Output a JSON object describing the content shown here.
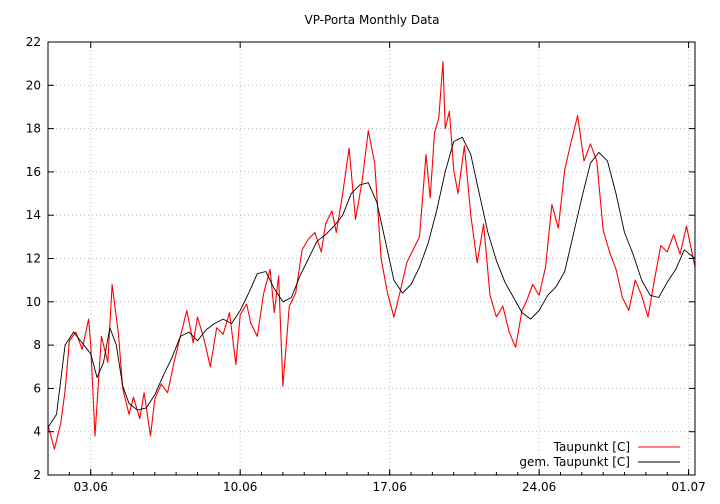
{
  "chart_data": {
    "type": "line",
    "title": "VP-Porta Monthly Data",
    "xlabel": "",
    "ylabel": "",
    "xlim": [
      0,
      30.3
    ],
    "ylim": [
      2,
      22
    ],
    "yticks": [
      2,
      4,
      6,
      8,
      10,
      12,
      14,
      16,
      18,
      20,
      22
    ],
    "xticks": [
      {
        "day": 2.0,
        "label": "03.06"
      },
      {
        "day": 9.0,
        "label": "10.06"
      },
      {
        "day": 16.0,
        "label": "17.06"
      },
      {
        "day": 23.0,
        "label": "24.06"
      },
      {
        "day": 30.0,
        "label": "01.07"
      }
    ],
    "grid": true,
    "legend_position": "bottom-right",
    "series": [
      {
        "name": "Taupunkt [C]",
        "color": "#ff0000",
        "x": [
          0.0,
          0.3,
          0.6,
          0.8,
          1.0,
          1.3,
          1.6,
          1.9,
          2.0,
          2.2,
          2.5,
          2.8,
          3.0,
          3.3,
          3.5,
          3.8,
          4.0,
          4.3,
          4.5,
          4.8,
          5.0,
          5.3,
          5.6,
          5.9,
          6.2,
          6.5,
          6.8,
          7.0,
          7.3,
          7.6,
          7.9,
          8.2,
          8.5,
          8.8,
          9.0,
          9.3,
          9.5,
          9.8,
          10.1,
          10.4,
          10.6,
          10.8,
          11.0,
          11.3,
          11.6,
          11.9,
          12.2,
          12.5,
          12.8,
          13.0,
          13.3,
          13.5,
          13.8,
          14.1,
          14.4,
          14.7,
          15.0,
          15.3,
          15.6,
          15.9,
          16.2,
          16.5,
          16.8,
          17.1,
          17.4,
          17.7,
          17.9,
          18.1,
          18.3,
          18.5,
          18.6,
          18.8,
          19.0,
          19.2,
          19.5,
          19.8,
          20.1,
          20.4,
          20.7,
          21.0,
          21.3,
          21.6,
          21.9,
          22.2,
          22.4,
          22.7,
          23.0,
          23.3,
          23.6,
          23.9,
          24.2,
          24.5,
          24.8,
          25.1,
          25.4,
          25.7,
          26.0,
          26.3,
          26.6,
          26.9,
          27.2,
          27.5,
          27.8,
          28.1,
          28.4,
          28.7,
          29.0,
          29.3,
          29.6,
          29.9,
          30.3
        ],
        "values": [
          4.3,
          3.2,
          4.4,
          5.9,
          8.2,
          8.6,
          7.8,
          9.2,
          8.0,
          3.8,
          8.4,
          7.2,
          10.8,
          8.5,
          6.0,
          4.8,
          5.6,
          4.6,
          5.8,
          3.8,
          5.5,
          6.2,
          5.8,
          7.2,
          8.4,
          9.6,
          8.1,
          9.3,
          8.3,
          7.0,
          8.8,
          8.5,
          9.5,
          7.1,
          9.4,
          9.9,
          9.0,
          8.4,
          10.4,
          11.5,
          9.5,
          11.2,
          6.1,
          9.8,
          10.4,
          12.4,
          12.9,
          13.2,
          12.3,
          13.6,
          14.2,
          13.2,
          15.0,
          17.1,
          13.8,
          15.5,
          17.9,
          16.4,
          12.0,
          10.4,
          9.3,
          10.5,
          11.8,
          12.4,
          13.0,
          16.8,
          14.8,
          17.8,
          18.5,
          21.1,
          18.0,
          18.8,
          16.1,
          15.0,
          17.2,
          14.0,
          11.8,
          13.6,
          10.3,
          9.3,
          9.8,
          8.6,
          7.9,
          9.6,
          10.0,
          10.8,
          10.3,
          11.6,
          14.5,
          13.4,
          16.1,
          17.4,
          18.6,
          16.5,
          17.3,
          16.5,
          13.3,
          12.3,
          11.5,
          10.2,
          9.6,
          11.0,
          10.3,
          9.3,
          11.0,
          12.6,
          12.3,
          13.1,
          12.2,
          13.5,
          11.6
        ]
      },
      {
        "name": "gem. Taupunkt [C]",
        "color": "#000000",
        "x": [
          0.0,
          0.4,
          0.8,
          1.2,
          1.6,
          2.0,
          2.3,
          2.6,
          2.9,
          3.2,
          3.5,
          3.8,
          4.2,
          4.6,
          5.0,
          5.4,
          5.8,
          6.2,
          6.6,
          7.0,
          7.4,
          7.8,
          8.2,
          8.6,
          9.0,
          9.4,
          9.8,
          10.2,
          10.6,
          11.0,
          11.4,
          11.8,
          12.2,
          12.6,
          13.0,
          13.4,
          13.8,
          14.2,
          14.6,
          15.0,
          15.4,
          15.8,
          16.2,
          16.6,
          17.0,
          17.4,
          17.8,
          18.2,
          18.6,
          19.0,
          19.4,
          19.8,
          20.2,
          20.6,
          21.0,
          21.4,
          21.8,
          22.2,
          22.6,
          23.0,
          23.4,
          23.8,
          24.2,
          24.6,
          25.0,
          25.4,
          25.8,
          26.2,
          26.6,
          27.0,
          27.4,
          27.8,
          28.2,
          28.6,
          29.0,
          29.4,
          29.8,
          30.3
        ],
        "values": [
          4.2,
          4.8,
          8.0,
          8.6,
          8.1,
          7.6,
          6.5,
          7.2,
          8.8,
          8.0,
          6.1,
          5.3,
          5.0,
          5.1,
          5.7,
          6.6,
          7.4,
          8.4,
          8.6,
          8.2,
          8.7,
          9.0,
          9.2,
          9.0,
          9.6,
          10.4,
          11.3,
          11.4,
          10.6,
          10.0,
          10.2,
          11.2,
          12.0,
          12.8,
          13.1,
          13.5,
          14.0,
          15.0,
          15.4,
          15.5,
          14.6,
          12.8,
          11.0,
          10.4,
          10.8,
          11.6,
          12.7,
          14.2,
          16.0,
          17.4,
          17.6,
          16.8,
          15.0,
          13.2,
          11.9,
          10.9,
          10.2,
          9.5,
          9.2,
          9.6,
          10.3,
          10.7,
          11.4,
          13.1,
          14.8,
          16.4,
          16.9,
          16.5,
          15.0,
          13.2,
          12.2,
          11.0,
          10.3,
          10.2,
          10.9,
          11.5,
          12.4,
          12.0
        ]
      }
    ]
  }
}
